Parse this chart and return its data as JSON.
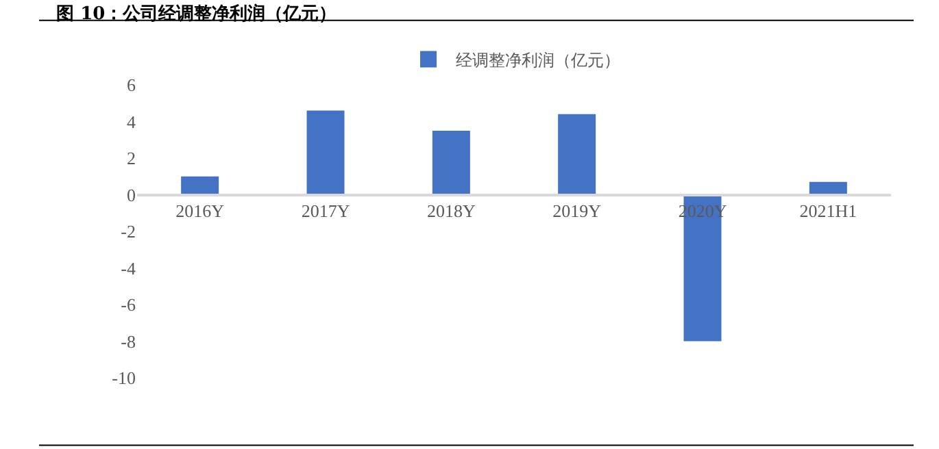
{
  "chart_data": {
    "type": "bar",
    "title": "图 10：公司经调整净利润（亿元）",
    "categories": [
      "2016Y",
      "2017Y",
      "2018Y",
      "2019Y",
      "2020Y",
      "2021H1"
    ],
    "series": [
      {
        "name": "经调整净利润（亿元）",
        "color": "#4472c4",
        "values": [
          1.0,
          4.6,
          3.5,
          4.4,
          -8.0,
          0.7
        ]
      }
    ],
    "ylim": [
      -10,
      6
    ],
    "yticks": [
      -10,
      -8,
      -6,
      -4,
      -2,
      0,
      2,
      4,
      6
    ],
    "grid": false,
    "legend": "top"
  }
}
